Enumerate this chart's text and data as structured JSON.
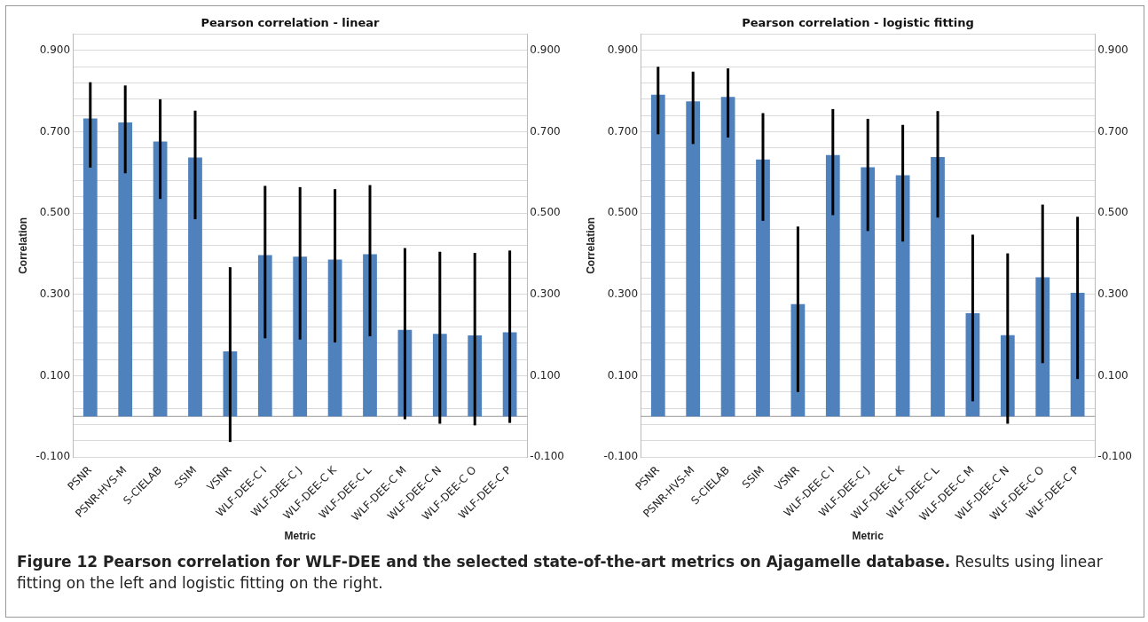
{
  "chart_data": [
    {
      "type": "bar",
      "title": "Pearson correlation - linear",
      "xlabel": "Metric",
      "ylabel": "Correlation",
      "grid": "y",
      "categories": [
        "PSNR",
        "PSNR-HVS-M",
        "S-CIELAB",
        "SSIM",
        "VSNR",
        "WLF-DEE-C I",
        "WLF-DEE-C J",
        "WLF-DEE-C K",
        "WLF-DEE-C L",
        "WLF-DEE-C M",
        "WLF-DEE-C N",
        "WLF-DEE-C O",
        "WLF-DEE-C P"
      ],
      "series": [
        {
          "color": "#4f81bd",
          "values": [
            0.733,
            0.723,
            0.676,
            0.637,
            0.16,
            0.397,
            0.393,
            0.386,
            0.399,
            0.213,
            0.203,
            0.199,
            0.207
          ],
          "errors": [
            [
              0.612,
              0.822
            ],
            [
              0.598,
              0.814
            ],
            [
              0.535,
              0.78
            ],
            [
              0.485,
              0.752
            ],
            [
              -0.063,
              0.367
            ],
            [
              0.192,
              0.567
            ],
            [
              0.189,
              0.564
            ],
            [
              0.182,
              0.559
            ],
            [
              0.197,
              0.569
            ],
            [
              -0.007,
              0.414
            ],
            [
              -0.018,
              0.405
            ],
            [
              -0.022,
              0.402
            ],
            [
              -0.016,
              0.408
            ]
          ]
        }
      ],
      "ylim": [
        -0.1,
        0.94
      ],
      "yticks": [
        {
          "value": -0.1,
          "label": "-0.100"
        },
        {
          "value": -0.06,
          "label": null
        },
        {
          "value": -0.02,
          "label": null
        },
        {
          "value": 0.02,
          "label": null
        },
        {
          "value": 0.06,
          "label": null
        },
        {
          "value": 0.1,
          "label": "0.100"
        },
        {
          "value": 0.14,
          "label": null
        },
        {
          "value": 0.18,
          "label": null
        },
        {
          "value": 0.22,
          "label": null
        },
        {
          "value": 0.26,
          "label": null
        },
        {
          "value": 0.3,
          "label": "0.300"
        },
        {
          "value": 0.34,
          "label": null
        },
        {
          "value": 0.38,
          "label": null
        },
        {
          "value": 0.42,
          "label": null
        },
        {
          "value": 0.46,
          "label": null
        },
        {
          "value": 0.5,
          "label": "0.500"
        },
        {
          "value": 0.54,
          "label": null
        },
        {
          "value": 0.58,
          "label": null
        },
        {
          "value": 0.62,
          "label": null
        },
        {
          "value": 0.66,
          "label": null
        },
        {
          "value": 0.7,
          "label": "0.700"
        },
        {
          "value": 0.74,
          "label": null
        },
        {
          "value": 0.78,
          "label": null
        },
        {
          "value": 0.82,
          "label": null
        },
        {
          "value": 0.86,
          "label": null
        },
        {
          "value": 0.9,
          "label": "0.900"
        },
        {
          "value": 0.94,
          "label": null
        }
      ],
      "y2lim": [
        -0.1,
        0.94
      ],
      "y2ticks": [
        {
          "value": -0.1,
          "label": "-0.100"
        },
        {
          "value": 0.1,
          "label": "0.100"
        },
        {
          "value": 0.3,
          "label": "0.300"
        },
        {
          "value": 0.5,
          "label": "0.500"
        },
        {
          "value": 0.7,
          "label": "0.700"
        },
        {
          "value": 0.9,
          "label": "0.900"
        }
      ],
      "annotations": [
        "Figure 12 Pearson correlation for WLF-DEE and the selected state-of-the-art metrics on Ajagamelle database.",
        "Results using linear fitting on the left and logistic fitting on the right."
      ]
    },
    {
      "type": "bar",
      "title": "Pearson correlation - logistic fitting",
      "xlabel": "Metric",
      "ylabel": "Correlation",
      "grid": "y",
      "categories": [
        "PSNR",
        "PSNR-HVS-M",
        "S-CIELAB",
        "SSIM",
        "VSNR",
        "WLF-DEE-C I",
        "WLF-DEE-C J",
        "WLF-DEE-C K",
        "WLF-DEE-C L",
        "WLF-DEE-C M",
        "WLF-DEE-C N",
        "WLF-DEE-C O",
        "WLF-DEE-C P"
      ],
      "series": [
        {
          "color": "#4f81bd",
          "values": [
            0.791,
            0.775,
            0.786,
            0.632,
            0.276,
            0.643,
            0.613,
            0.593,
            0.638,
            0.254,
            0.2,
            0.342,
            0.304
          ],
          "errors": [
            [
              0.694,
              0.86
            ],
            [
              0.67,
              0.848
            ],
            [
              0.686,
              0.856
            ],
            [
              0.481,
              0.746
            ],
            [
              0.06,
              0.467
            ],
            [
              0.495,
              0.756
            ],
            [
              0.456,
              0.732
            ],
            [
              0.43,
              0.717
            ],
            [
              0.489,
              0.751
            ],
            [
              0.037,
              0.447
            ],
            [
              -0.018,
              0.401
            ],
            [
              0.131,
              0.521
            ],
            [
              0.092,
              0.491
            ]
          ]
        }
      ],
      "ylim": [
        -0.1,
        0.94
      ],
      "yticks": [
        {
          "value": -0.1,
          "label": "-0.100"
        },
        {
          "value": -0.06,
          "label": null
        },
        {
          "value": -0.02,
          "label": null
        },
        {
          "value": 0.02,
          "label": null
        },
        {
          "value": 0.06,
          "label": null
        },
        {
          "value": 0.1,
          "label": "0.100"
        },
        {
          "value": 0.14,
          "label": null
        },
        {
          "value": 0.18,
          "label": null
        },
        {
          "value": 0.22,
          "label": null
        },
        {
          "value": 0.26,
          "label": null
        },
        {
          "value": 0.3,
          "label": "0.300"
        },
        {
          "value": 0.34,
          "label": null
        },
        {
          "value": 0.38,
          "label": null
        },
        {
          "value": 0.42,
          "label": null
        },
        {
          "value": 0.46,
          "label": null
        },
        {
          "value": 0.5,
          "label": "0.500"
        },
        {
          "value": 0.54,
          "label": null
        },
        {
          "value": 0.58,
          "label": null
        },
        {
          "value": 0.62,
          "label": null
        },
        {
          "value": 0.66,
          "label": null
        },
        {
          "value": 0.7,
          "label": "0.700"
        },
        {
          "value": 0.74,
          "label": null
        },
        {
          "value": 0.78,
          "label": null
        },
        {
          "value": 0.82,
          "label": null
        },
        {
          "value": 0.86,
          "label": null
        },
        {
          "value": 0.9,
          "label": "0.900"
        },
        {
          "value": 0.94,
          "label": null
        }
      ],
      "y2lim": [
        -0.1,
        0.94
      ],
      "y2ticks": [
        {
          "value": -0.1,
          "label": "-0.100"
        },
        {
          "value": 0.1,
          "label": "0.100"
        },
        {
          "value": 0.3,
          "label": "0.300"
        },
        {
          "value": 0.5,
          "label": "0.500"
        },
        {
          "value": 0.7,
          "label": "0.700"
        },
        {
          "value": 0.9,
          "label": "0.900"
        }
      ]
    }
  ]
}
